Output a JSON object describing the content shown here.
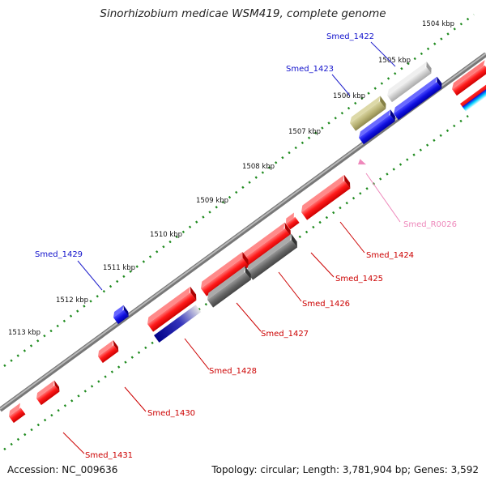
{
  "title": "Sinorhizobium medicae WSM419, complete genome",
  "footer": {
    "accession": "Accession: NC_009636",
    "info": "Topology: circular; Length: 3,781,904 bp; Genes: 3,592"
  },
  "colors": {
    "backbone": "#8c8c8c",
    "tick": "#1e8a1e",
    "red_gene": "#ee1111",
    "blue_gene": "#1111dd",
    "gray_gene": "#6a6a6a",
    "rna": "#ee88bb",
    "olive_gene": "#b5b070"
  },
  "kbp_labels": [
    "1504 kbp",
    "1505 kbp",
    "1506 kbp",
    "1507 kbp",
    "1508 kbp",
    "1509 kbp",
    "1510 kbp",
    "1511 kbp",
    "1512 kbp",
    "1513 kbp"
  ],
  "gene_labels": [
    {
      "name": "Smed_1422",
      "color": "#1111cc"
    },
    {
      "name": "Smed_1423",
      "color": "#1111cc"
    },
    {
      "name": "Smed_R0026",
      "color": "#ee88bb"
    },
    {
      "name": "Smed_1424",
      "color": "#cc0000"
    },
    {
      "name": "Smed_1425",
      "color": "#cc0000"
    },
    {
      "name": "Smed_1426",
      "color": "#cc0000"
    },
    {
      "name": "Smed_1427",
      "color": "#cc0000"
    },
    {
      "name": "Smed_1428",
      "color": "#cc0000"
    },
    {
      "name": "Smed_1429",
      "color": "#1111cc"
    },
    {
      "name": "Smed_1430",
      "color": "#cc0000"
    },
    {
      "name": "Smed_1431",
      "color": "#cc0000"
    }
  ]
}
